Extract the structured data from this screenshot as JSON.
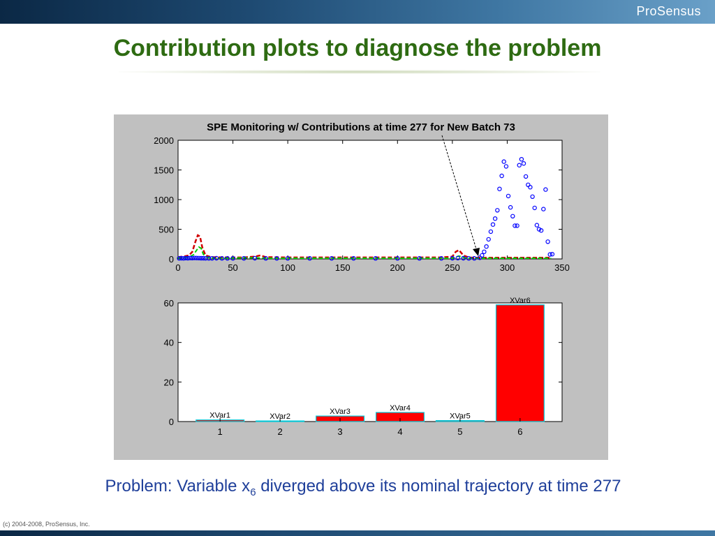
{
  "header": {
    "logo_text": "ProSensus"
  },
  "slide": {
    "title": "Contribution plots to diagnose the problem"
  },
  "caption": {
    "prefix": "Problem:  Variable x",
    "subscript": "6",
    "suffix": " diverged above its nominal trajectory at time 277"
  },
  "footer": {
    "copyright": "(c) 2004-2008, ProSensus, Inc."
  },
  "colors": {
    "title_green": "#2e6b12",
    "caption_blue": "#1f3f9a",
    "bar_red": "#ff0000",
    "bar_edge": "#00c8d8",
    "series_blue": "#0000ff",
    "series_green": "#00d000",
    "series_red": "#d00000"
  },
  "chart_data": [
    {
      "type": "scatter",
      "title": "SPE Monitoring w/ Contributions at time 277 for New Batch 73",
      "xlim": [
        0,
        350
      ],
      "ylim": [
        0,
        2000
      ],
      "xticks": [
        0,
        50,
        100,
        150,
        200,
        250,
        300,
        350
      ],
      "yticks": [
        0,
        500,
        1000,
        1500,
        2000
      ],
      "grid": false,
      "annotation": "dashed arrow pointing to time 277",
      "series": [
        {
          "style": "blue circles",
          "x": [
            1,
            3,
            5,
            7,
            9,
            11,
            13,
            15,
            17,
            19,
            21,
            23,
            25,
            28,
            31,
            35,
            40,
            45,
            50,
            60,
            70,
            80,
            90,
            100,
            120,
            140,
            160,
            180,
            200,
            220,
            240,
            250,
            255,
            260,
            265,
            270,
            275,
            277,
            279,
            281,
            283,
            285,
            287,
            289,
            291,
            293,
            295,
            297,
            299,
            301,
            303,
            305,
            307,
            309,
            311,
            313,
            315,
            317,
            319,
            321,
            323,
            325,
            327,
            329,
            331,
            333,
            335,
            337,
            339,
            341
          ],
          "y": [
            10,
            12,
            10,
            14,
            12,
            15,
            14,
            16,
            15,
            14,
            12,
            12,
            10,
            10,
            10,
            12,
            10,
            10,
            10,
            10,
            12,
            10,
            10,
            10,
            10,
            10,
            10,
            10,
            10,
            10,
            10,
            12,
            14,
            12,
            10,
            10,
            20,
            60,
            120,
            210,
            330,
            460,
            580,
            680,
            820,
            1180,
            1400,
            1640,
            1560,
            1060,
            870,
            720,
            560,
            560,
            1580,
            1680,
            1610,
            1390,
            1250,
            1210,
            1050,
            860,
            570,
            500,
            480,
            840,
            1170,
            290,
            75,
            80
          ]
        },
        {
          "style": "red dashed",
          "x": [
            0,
            5,
            10,
            13,
            16,
            18,
            20,
            22,
            25,
            30,
            40,
            60,
            70,
            75,
            80,
            100,
            150,
            200,
            240,
            250,
            253,
            256,
            260,
            265,
            270,
            280,
            300,
            340
          ],
          "y": [
            30,
            40,
            60,
            120,
            300,
            400,
            380,
            200,
            60,
            30,
            25,
            25,
            40,
            60,
            30,
            25,
            25,
            25,
            25,
            40,
            120,
            150,
            60,
            25,
            20,
            20,
            20,
            20
          ]
        },
        {
          "style": "green dashed",
          "x": [
            0,
            5,
            10,
            14,
            17,
            19,
            21,
            23,
            26,
            30,
            40,
            70,
            80,
            150,
            250,
            256,
            262,
            270,
            300,
            340
          ],
          "y": [
            15,
            20,
            30,
            70,
            150,
            200,
            180,
            80,
            30,
            15,
            12,
            20,
            12,
            12,
            12,
            50,
            15,
            12,
            12,
            12
          ]
        }
      ]
    },
    {
      "type": "bar",
      "categories": [
        "1",
        "2",
        "3",
        "4",
        "5",
        "6"
      ],
      "bar_labels": [
        "XVar1",
        "XVar2",
        "XVar3",
        "XVar4",
        "XVar5",
        "XVar6"
      ],
      "values": [
        0.8,
        0.3,
        2.8,
        4.6,
        0.5,
        59
      ],
      "ylim": [
        0,
        60
      ],
      "yticks": [
        0,
        20,
        40,
        60
      ]
    }
  ]
}
